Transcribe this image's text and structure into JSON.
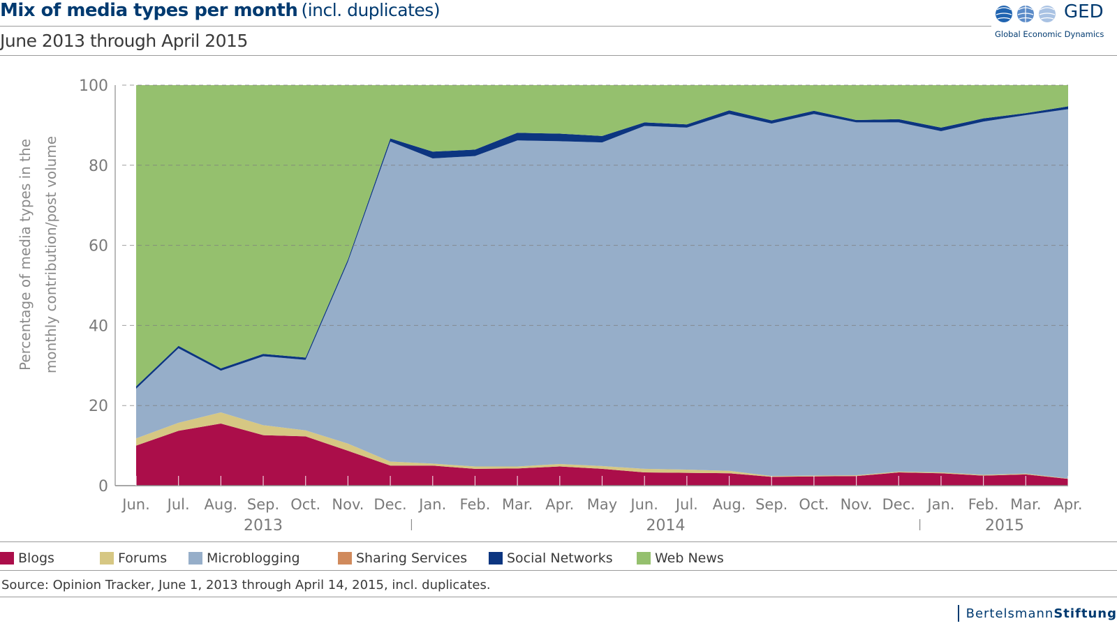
{
  "header": {
    "title_main": "Mix of media types per month",
    "title_note": "(incl. duplicates)",
    "subtitle": "June 2013 through April 2015"
  },
  "logo": {
    "name": "GED",
    "subtitle": "Global Economic Dynamics",
    "icon": "globe-icons"
  },
  "footer": {
    "source": "Source: Opinion Tracker, June 1, 2013 through April 14, 2015, incl. duplicates.",
    "brand_light": "Bertelsmann",
    "brand_bold": "Stiftung"
  },
  "chart_data": {
    "type": "area",
    "stacked": true,
    "title": "Mix of media types per month",
    "ylabel_lines": [
      "Percentage of media types in the",
      "monthly contribution/post volume"
    ],
    "ylim": [
      0,
      100
    ],
    "yticks": [
      0,
      20,
      40,
      60,
      80,
      100
    ],
    "grid": "dashed horizontal",
    "legend_position": "bottom",
    "categories": [
      "Jun.",
      "Jul.",
      "Aug.",
      "Sep.",
      "Oct.",
      "Nov.",
      "Dec.",
      "Jan.",
      "Feb.",
      "Mar.",
      "Apr.",
      "May",
      "Jun.",
      "Jul.",
      "Aug.",
      "Sep.",
      "Oct.",
      "Nov.",
      "Dec.",
      "Jan.",
      "Feb.",
      "Mar.",
      "Apr."
    ],
    "year_labels": [
      {
        "label": "2013",
        "from": 0,
        "to": 6
      },
      {
        "label": "2014",
        "from": 7,
        "to": 18
      },
      {
        "label": "2015",
        "from": 19,
        "to": 22
      }
    ],
    "series": [
      {
        "name": "Blogs",
        "color": "#ab0e4a",
        "values": [
          10.0,
          13.7,
          15.5,
          12.6,
          12.3,
          8.7,
          5.0,
          5.0,
          4.2,
          4.3,
          4.8,
          4.2,
          3.3,
          3.2,
          3.1,
          2.2,
          2.3,
          2.4,
          3.3,
          3.1,
          2.5,
          2.8,
          1.7
        ]
      },
      {
        "name": "Forums",
        "color": "#d6c783",
        "values": [
          1.8,
          2.0,
          2.8,
          2.5,
          1.5,
          1.8,
          1.0,
          0.5,
          0.6,
          0.5,
          0.6,
          0.7,
          0.9,
          0.8,
          0.6,
          0.2,
          0.2,
          0.2,
          0.2,
          0.2,
          0.2,
          0.2,
          0.1
        ]
      },
      {
        "name": "Microblogging",
        "color": "#96aec9",
        "values": [
          12.4,
          18.6,
          10.4,
          17.2,
          17.6,
          45.4,
          79.9,
          76.2,
          77.5,
          81.4,
          80.6,
          80.8,
          85.6,
          85.4,
          89.1,
          88.0,
          90.3,
          88.1,
          87.2,
          85.2,
          88.2,
          89.5,
          92.2
        ]
      },
      {
        "name": "Sharing Services",
        "color": "#d08a5c",
        "values": [
          0,
          0,
          0,
          0,
          0,
          0,
          0,
          0,
          0,
          0,
          0,
          0,
          0,
          0,
          0,
          0,
          0,
          0,
          0,
          0,
          0,
          0,
          0
        ]
      },
      {
        "name": "Social Networks",
        "color": "#0c3580",
        "values": [
          0.6,
          0.6,
          0.6,
          0.6,
          0.6,
          0.6,
          0.8,
          1.7,
          1.6,
          1.9,
          1.9,
          1.6,
          0.9,
          0.8,
          0.9,
          0.8,
          0.8,
          0.6,
          0.8,
          0.9,
          0.8,
          0.5,
          0.7
        ]
      },
      {
        "name": "Web News",
        "color": "#95c06e",
        "values": [
          75.2,
          65.1,
          70.7,
          67.1,
          68.0,
          43.5,
          13.3,
          16.6,
          16.1,
          11.9,
          12.1,
          12.7,
          9.3,
          9.8,
          6.3,
          8.8,
          6.4,
          8.7,
          8.5,
          10.6,
          8.3,
          7.0,
          5.3
        ]
      }
    ]
  }
}
